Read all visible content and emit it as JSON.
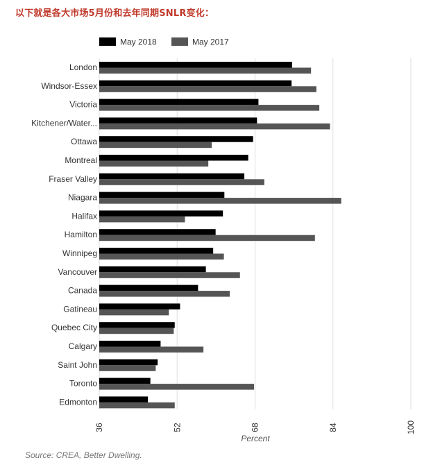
{
  "heading": "以下就是各大市场5月份和去年同期SNLR变化：",
  "source": "Source: CREA, Better Dwelling.",
  "chart_data": {
    "type": "bar",
    "orientation": "horizontal",
    "categories": [
      "London",
      "Windsor-Essex",
      "Victoria",
      "Kitchener/Water...",
      "Ottawa",
      "Montreal",
      "Fraser Valley",
      "Niagara",
      "Halifax",
      "Hamilton",
      "Winnipeg",
      "Vancouver",
      "Canada",
      "Gatineau",
      "Quebec City",
      "Calgary",
      "Saint John",
      "Toronto",
      "Edmonton"
    ],
    "series": [
      {
        "name": "May 2018",
        "color": "#000000",
        "values": [
          75.6,
          75.5,
          68.7,
          68.4,
          67.6,
          66.6,
          65.8,
          61.7,
          61.4,
          59.9,
          59.4,
          57.9,
          56.3,
          52.6,
          51.5,
          48.6,
          48.0,
          46.5,
          46.0
        ]
      },
      {
        "name": "May 2017",
        "color": "#555555",
        "values": [
          79.5,
          80.6,
          81.2,
          83.4,
          59.1,
          58.4,
          69.9,
          85.7,
          53.6,
          80.3,
          61.6,
          64.9,
          62.8,
          50.3,
          51.3,
          57.4,
          47.6,
          67.8,
          51.5
        ]
      }
    ],
    "xlabel": "Percent",
    "xlim": [
      36,
      100
    ],
    "xticks": [
      "36",
      "52",
      "68",
      "84",
      "100"
    ],
    "grid": true,
    "legend_position": "top-left"
  }
}
